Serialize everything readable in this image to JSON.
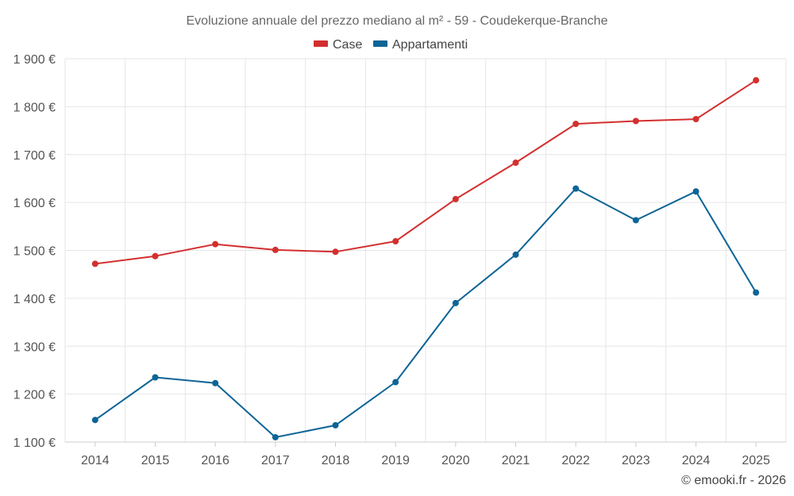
{
  "chart_data": {
    "type": "line",
    "title": "Evoluzione annuale del prezzo mediano al m² - 59 - Coudekerque-Branche",
    "categories": [
      "2014",
      "2015",
      "2016",
      "2017",
      "2018",
      "2019",
      "2020",
      "2021",
      "2022",
      "2023",
      "2024",
      "2025"
    ],
    "y_ticks": [
      "1 100 €",
      "1 200 €",
      "1 300 €",
      "1 400 €",
      "1 500 €",
      "1 600 €",
      "1 700 €",
      "1 800 €",
      "1 900 €"
    ],
    "ylim": [
      1100,
      1900
    ],
    "y_step": 100,
    "legend_position": "top",
    "grid": true,
    "series": [
      {
        "name": "Case",
        "color": "#d32f2f",
        "values": [
          1472,
          1488,
          1513,
          1501,
          1497,
          1519,
          1607,
          1683,
          1764,
          1770,
          1774,
          1855
        ]
      },
      {
        "name": "Appartamenti",
        "color": "#0d6496",
        "values": [
          1146,
          1235,
          1223,
          1110,
          1135,
          1225,
          1390,
          1491,
          1629,
          1563,
          1623,
          1412
        ]
      }
    ],
    "credit": "© emooki.fr - 2026"
  }
}
